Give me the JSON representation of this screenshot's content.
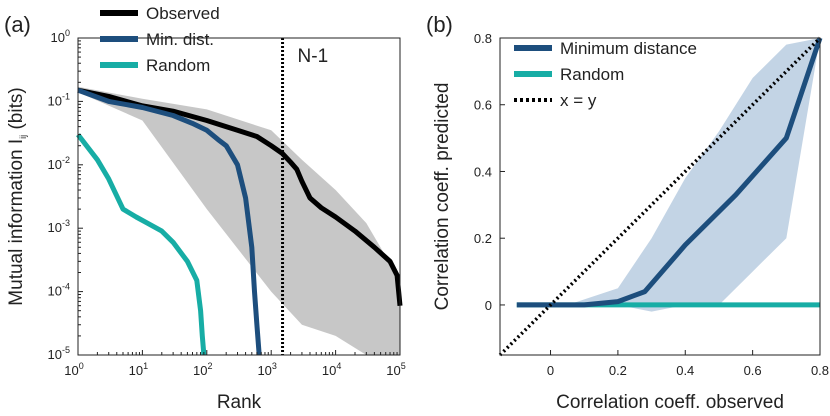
{
  "chart_data": [
    {
      "panel": "(a)",
      "type": "line",
      "xscale": "log",
      "yscale": "log",
      "xlabel": "Rank",
      "ylabel": "Mutual information I",
      "ylabel_sub": "ij",
      "ylabel_unit": "(bits)",
      "xlim": [
        1,
        100000
      ],
      "ylim": [
        1e-05,
        1
      ],
      "x_ticks": [
        {
          "base": "10",
          "exp": "0",
          "v": 1
        },
        {
          "base": "10",
          "exp": "1",
          "v": 10
        },
        {
          "base": "10",
          "exp": "2",
          "v": 100
        },
        {
          "base": "10",
          "exp": "3",
          "v": 1000
        },
        {
          "base": "10",
          "exp": "4",
          "v": 10000
        },
        {
          "base": "10",
          "exp": "5",
          "v": 100000
        }
      ],
      "y_ticks": [
        {
          "base": "10",
          "exp": "0",
          "v": 1
        },
        {
          "base": "10",
          "exp": "-1",
          "v": 0.1
        },
        {
          "base": "10",
          "exp": "-2",
          "v": 0.01
        },
        {
          "base": "10",
          "exp": "-3",
          "v": 0.001
        },
        {
          "base": "10",
          "exp": "-4",
          "v": 0.0001
        },
        {
          "base": "10",
          "exp": "-5",
          "v": 1e-05
        }
      ],
      "vline": {
        "x": 1500,
        "label": "N-1",
        "style": "dotted"
      },
      "legend": {
        "position": "top",
        "entries": [
          {
            "name": "Observed",
            "color": "#000000"
          },
          {
            "name": "Min. dist.",
            "color": "#1d4e7d"
          },
          {
            "name": "Random",
            "color": "#17ada5"
          }
        ]
      },
      "series": [
        {
          "name": "Observed",
          "color": "#000000",
          "x": [
            1,
            3,
            10,
            30,
            100,
            300,
            600,
            1000,
            1500,
            2000,
            2500,
            3000,
            4000,
            6000,
            10000,
            20000,
            40000,
            70000,
            90000,
            100000
          ],
          "y": [
            0.15,
            0.12,
            0.085,
            0.07,
            0.05,
            0.035,
            0.028,
            0.02,
            0.015,
            0.011,
            0.0085,
            0.0055,
            0.003,
            0.0021,
            0.0015,
            0.0009,
            0.0005,
            0.0003,
            0.00018,
            6e-05
          ]
        },
        {
          "name": "Min. dist.",
          "color": "#1d4e7d",
          "x": [
            1,
            3,
            10,
            30,
            60,
            100,
            150,
            200,
            300,
            400,
            500,
            550,
            600,
            650
          ],
          "y": [
            0.15,
            0.1,
            0.08,
            0.06,
            0.045,
            0.035,
            0.025,
            0.02,
            0.01,
            0.003,
            0.0005,
            0.0001,
            3e-05,
            1e-05
          ]
        },
        {
          "name": "Random",
          "color": "#17ada5",
          "x": [
            1,
            2,
            3,
            5,
            8,
            12,
            20,
            30,
            50,
            70,
            80,
            85,
            90
          ],
          "y": [
            0.03,
            0.012,
            0.006,
            0.002,
            0.0015,
            0.0012,
            0.0009,
            0.0006,
            0.0003,
            0.00015,
            5e-05,
            2e-05,
            1e-05
          ]
        }
      ],
      "band": {
        "name": "Observed spread",
        "color": "#999999",
        "x": [
          1,
          10,
          100,
          1000,
          3000,
          10000,
          30000,
          100000
        ],
        "upper": [
          0.17,
          0.11,
          0.075,
          0.035,
          0.012,
          0.004,
          0.0012,
          0.00015
        ],
        "lower": [
          0.14,
          0.05,
          0.002,
          0.0001,
          3e-05,
          2e-05,
          1e-05,
          1e-05
        ]
      }
    },
    {
      "panel": "(b)",
      "type": "line",
      "xlabel": "Correlation coeff. observed",
      "ylabel": "Correlation coeff. predicted",
      "xlim": [
        -0.15,
        0.8
      ],
      "ylim": [
        -0.15,
        0.8
      ],
      "x_ticks": [
        "0",
        "0.2",
        "0.4",
        "0.6",
        "0.8"
      ],
      "y_ticks": [
        "0",
        "0.2",
        "0.4",
        "0.6",
        "0.8"
      ],
      "legend": {
        "position": "top-left",
        "entries": [
          {
            "name": "Minimum distance",
            "color": "#1d4e7d",
            "style": "solid"
          },
          {
            "name": "Random",
            "color": "#17ada5",
            "style": "solid"
          },
          {
            "name": "x = y",
            "color": "#000000",
            "style": "dotted"
          }
        ]
      },
      "series": [
        {
          "name": "Minimum distance",
          "color": "#1d4e7d",
          "x": [
            -0.1,
            0.0,
            0.1,
            0.2,
            0.28,
            0.4,
            0.55,
            0.7,
            0.8
          ],
          "y": [
            0.0,
            0.0,
            0.0,
            0.01,
            0.04,
            0.18,
            0.33,
            0.5,
            0.8
          ]
        },
        {
          "name": "Random",
          "color": "#17ada5",
          "x": [
            -0.1,
            0.8
          ],
          "y": [
            0.0,
            0.0
          ]
        },
        {
          "name": "x = y",
          "color": "#000000",
          "style": "dotted",
          "x": [
            -0.15,
            0.8
          ],
          "y": [
            -0.15,
            0.8
          ]
        }
      ],
      "band": {
        "name": "Minimum distance spread",
        "color": "#b8cde0",
        "x": [
          0.05,
          0.2,
          0.3,
          0.4,
          0.5,
          0.6,
          0.7,
          0.8
        ],
        "upper": [
          0.0,
          0.05,
          0.2,
          0.38,
          0.52,
          0.68,
          0.78,
          0.8
        ],
        "lower": [
          0.0,
          0.0,
          -0.02,
          0.0,
          0.0,
          0.1,
          0.2,
          0.8
        ]
      }
    }
  ]
}
